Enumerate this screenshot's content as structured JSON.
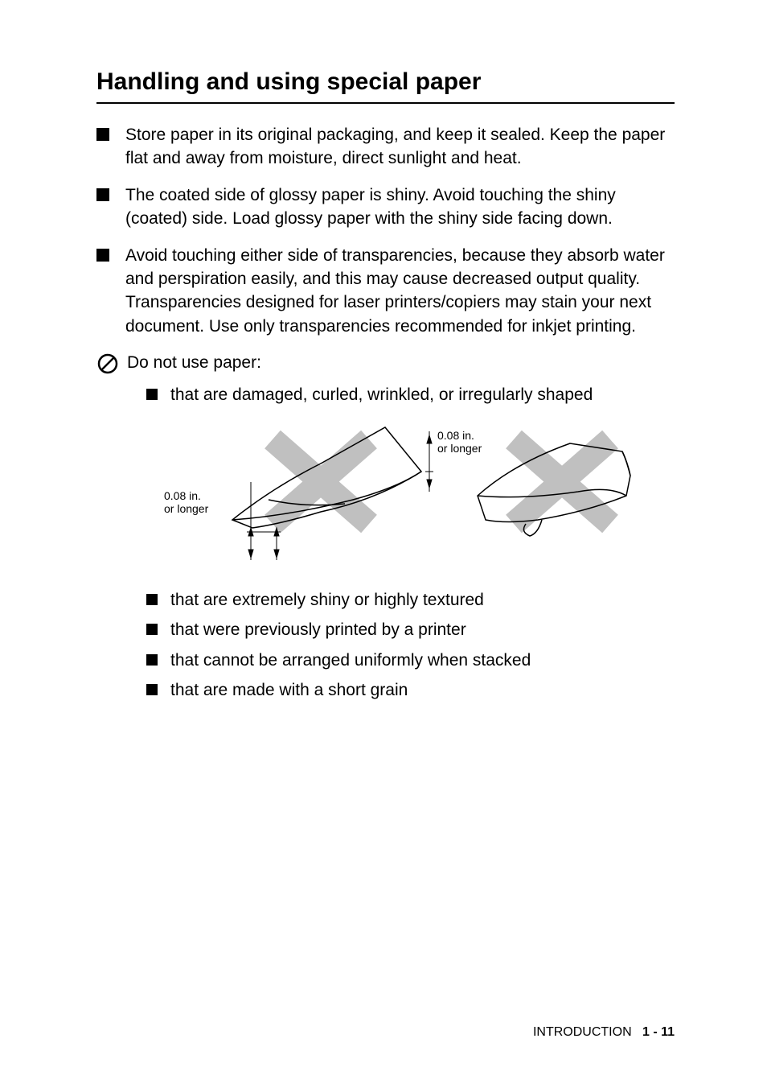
{
  "heading": "Handling and using special paper",
  "main_bullets": [
    "Store paper in its original packaging, and keep it sealed. Keep the paper flat and away from moisture, direct sunlight and heat.",
    "The coated side of glossy paper is shiny. Avoid touching the shiny (coated) side. Load glossy paper with the shiny side facing down.",
    "Avoid touching either side of transparencies, because they absorb water and perspiration easily, and this may cause decreased output quality. Transparencies designed for laser printers/copiers may stain your next document. Use only transparencies recommended for inkjet printing."
  ],
  "warning_intro": "Do not use paper:",
  "sub_bullets_before": [
    "that are damaged, curled, wrinkled, or irregularly shaped"
  ],
  "sub_bullets_after": [
    "that are extremely shiny or highly textured",
    "that were previously printed by a printer",
    "that cannot be arranged uniformly when stacked",
    "that are made with a short grain"
  ],
  "diagram": {
    "label_left": "0.08 in.\nor longer",
    "label_right": "0.08 in.\nor longer",
    "x_color": "#c0c0c0",
    "line_color": "#000000",
    "label_fontsize": 14
  },
  "footer": {
    "section": "INTRODUCTION",
    "page": "1 - 11"
  },
  "colors": {
    "text": "#000000",
    "background": "#ffffff",
    "bullet": "#000000",
    "diagram_x": "#c0c0c0"
  }
}
